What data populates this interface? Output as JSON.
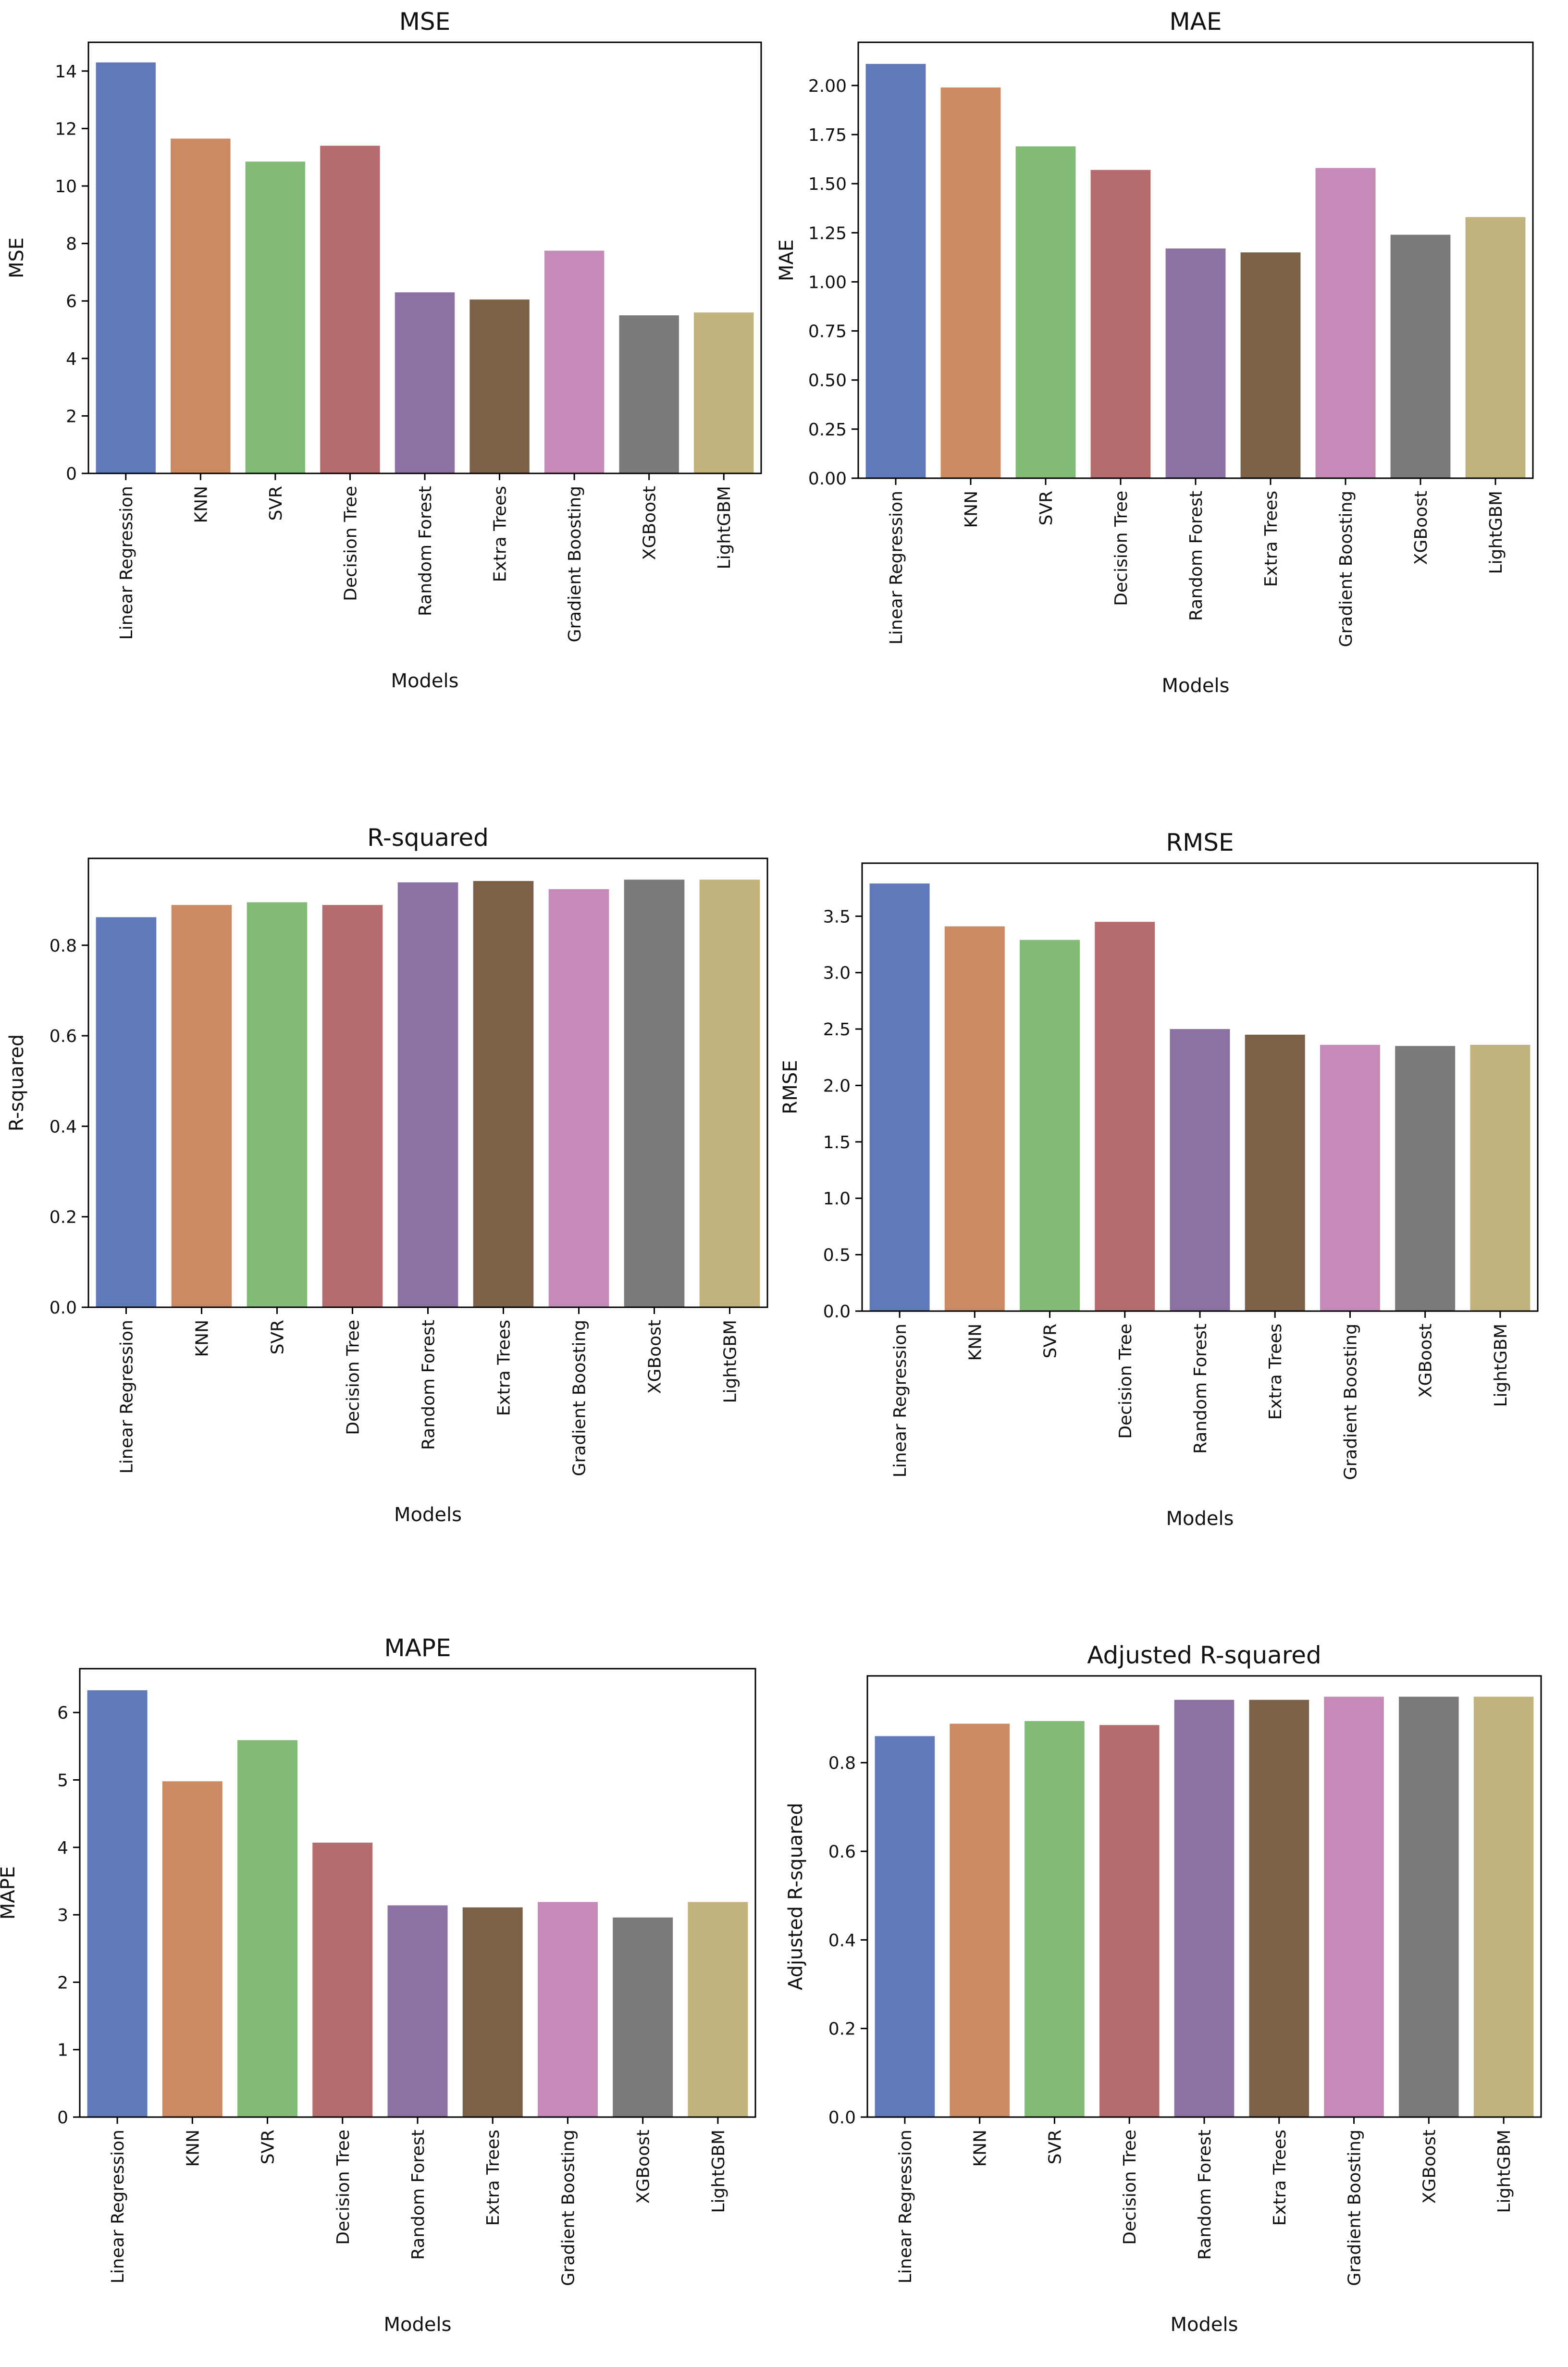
{
  "colors": [
    "#5f79bb",
    "#cc8a63",
    "#82bb76",
    "#b66c6c",
    "#8b72a3",
    "#7c6149",
    "#c68ab9",
    "#7a7a7a",
    "#c2b27b"
  ],
  "chart_data": [
    {
      "type": "bar",
      "title": "MSE",
      "xlabel": "Models",
      "ylabel": "MSE",
      "categories": [
        "Linear Regression",
        "KNN",
        "SVR",
        "Decision Tree",
        "Random Forest",
        "Extra Trees",
        "Gradient Boosting",
        "XGBoost",
        "LightGBM"
      ],
      "values": [
        14.3,
        11.65,
        10.85,
        11.4,
        6.3,
        6.05,
        7.75,
        5.5,
        5.6
      ],
      "ylim": [
        0,
        15.0
      ],
      "yticks": [
        0,
        2,
        4,
        6,
        8,
        10,
        12,
        14
      ],
      "ytick_labels": [
        "0",
        "2",
        "4",
        "6",
        "8",
        "10",
        "12",
        "14"
      ],
      "grid": false
    },
    {
      "type": "bar",
      "title": "MAE",
      "xlabel": "Models",
      "ylabel": "MAE",
      "categories": [
        "Linear Regression",
        "KNN",
        "SVR",
        "Decision Tree",
        "Random Forest",
        "Extra Trees",
        "Gradient Boosting",
        "XGBoost",
        "LightGBM"
      ],
      "values": [
        2.11,
        1.99,
        1.69,
        1.57,
        1.17,
        1.15,
        1.58,
        1.24,
        1.33
      ],
      "ylim": [
        0,
        2.22
      ],
      "yticks": [
        0,
        0.25,
        0.5,
        0.75,
        1.0,
        1.25,
        1.5,
        1.75,
        2.0
      ],
      "ytick_labels": [
        "0.00",
        "0.25",
        "0.50",
        "0.75",
        "1.00",
        "1.25",
        "1.50",
        "1.75",
        "2.00"
      ],
      "grid": false
    },
    {
      "type": "bar",
      "title": "R-squared",
      "xlabel": "Models",
      "ylabel": "R-squared",
      "categories": [
        "Linear Regression",
        "KNN",
        "SVR",
        "Decision Tree",
        "Random Forest",
        "Extra Trees",
        "Gradient Boosting",
        "XGBoost",
        "LightGBM"
      ],
      "values": [
        0.862,
        0.889,
        0.895,
        0.889,
        0.939,
        0.942,
        0.924,
        0.945,
        0.945
      ],
      "ylim": [
        0,
        0.992
      ],
      "yticks": [
        0,
        0.2,
        0.4,
        0.6,
        0.8
      ],
      "ytick_labels": [
        "0.0",
        "0.2",
        "0.4",
        "0.6",
        "0.8"
      ],
      "grid": false
    },
    {
      "type": "bar",
      "title": "RMSE",
      "xlabel": "Models",
      "ylabel": "RMSE",
      "categories": [
        "Linear Regression",
        "KNN",
        "SVR",
        "Decision Tree",
        "Random Forest",
        "Extra Trees",
        "Gradient Boosting",
        "XGBoost",
        "LightGBM"
      ],
      "values": [
        3.79,
        3.41,
        3.29,
        3.45,
        2.5,
        2.45,
        2.36,
        2.35,
        2.36
      ],
      "ylim": [
        0,
        3.97
      ],
      "yticks": [
        0,
        0.5,
        1.0,
        1.5,
        2.0,
        2.5,
        3.0,
        3.5
      ],
      "ytick_labels": [
        "0.0",
        "0.5",
        "1.0",
        "1.5",
        "2.0",
        "2.5",
        "3.0",
        "3.5"
      ],
      "grid": false
    },
    {
      "type": "bar",
      "title": "MAPE",
      "xlabel": "Models",
      "ylabel": "MAPE",
      "categories": [
        "Linear Regression",
        "KNN",
        "SVR",
        "Decision Tree",
        "Random Forest",
        "Extra Trees",
        "Gradient Boosting",
        "XGBoost",
        "LightGBM"
      ],
      "values": [
        6.33,
        4.98,
        5.59,
        4.07,
        3.14,
        3.11,
        3.19,
        2.96,
        3.19
      ],
      "ylim": [
        0,
        6.65
      ],
      "yticks": [
        0,
        1,
        2,
        3,
        4,
        5,
        6
      ],
      "ytick_labels": [
        "0",
        "1",
        "2",
        "3",
        "4",
        "5",
        "6"
      ],
      "grid": false
    },
    {
      "type": "bar",
      "title": "Adjusted R-squared",
      "xlabel": "Models",
      "ylabel": "Adjusted R-squared",
      "categories": [
        "Linear Regression",
        "KNN",
        "SVR",
        "Decision Tree",
        "Random Forest",
        "Extra Trees",
        "Gradient Boosting",
        "XGBoost",
        "LightGBM"
      ],
      "values": [
        0.86,
        0.888,
        0.894,
        0.885,
        0.942,
        0.942,
        0.949,
        0.949,
        0.949
      ],
      "ylim": [
        0,
        0.996
      ],
      "yticks": [
        0,
        0.2,
        0.4,
        0.6,
        0.8
      ],
      "ytick_labels": [
        "0.0",
        "0.2",
        "0.4",
        "0.6",
        "0.8"
      ],
      "grid": false
    }
  ]
}
